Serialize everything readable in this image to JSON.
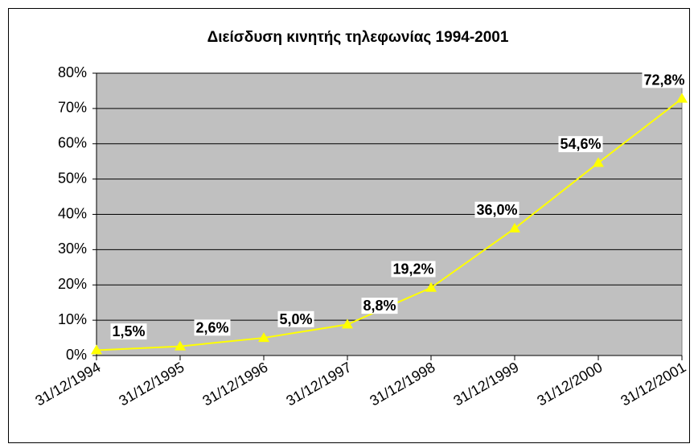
{
  "chart_data": {
    "type": "line",
    "title": "Διείσδυση κινητής τηλεφωνίας 1994-2001",
    "categories": [
      "31/12/1994",
      "31/12/1995",
      "31/12/1996",
      "31/12/1997",
      "31/12/1998",
      "31/12/1999",
      "31/12/2000",
      "31/12/2001"
    ],
    "values": [
      1.5,
      2.6,
      5.0,
      8.8,
      19.2,
      36.0,
      54.6,
      72.8
    ],
    "value_labels": [
      "1,5%",
      "2,6%",
      "5,0%",
      "8,8%",
      "19,2%",
      "36,0%",
      "54,6%",
      "72,8%"
    ],
    "color": "#ffff00",
    "ylim": [
      0,
      80
    ],
    "yticks": [
      {
        "value": 0,
        "label": "0%"
      },
      {
        "value": 10,
        "label": "10%"
      },
      {
        "value": 20,
        "label": "20%"
      },
      {
        "value": 30,
        "label": "30%"
      },
      {
        "value": 40,
        "label": "40%"
      },
      {
        "value": 50,
        "label": "50%"
      },
      {
        "value": 60,
        "label": "60%"
      },
      {
        "value": 70,
        "label": "70%"
      },
      {
        "value": 80,
        "label": "80%"
      }
    ],
    "grid": true
  }
}
